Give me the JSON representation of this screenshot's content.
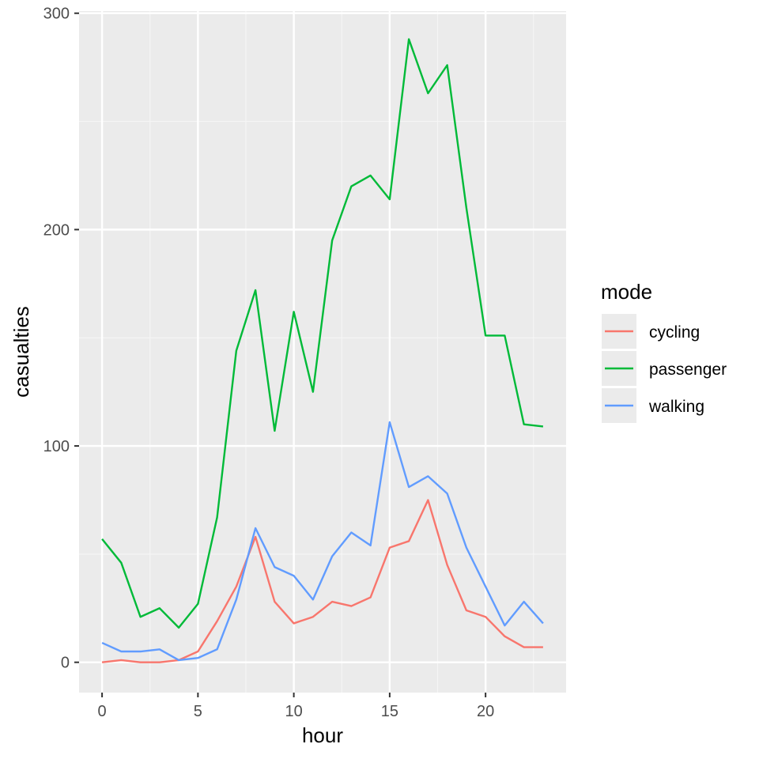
{
  "chart_data": {
    "type": "line",
    "xlabel": "hour",
    "ylabel": "casualties",
    "xlim": [
      -1.2,
      24.2
    ],
    "ylim": [
      -14,
      301
    ],
    "x_ticks": [
      0,
      5,
      10,
      15,
      20
    ],
    "y_ticks": [
      0,
      100,
      200,
      300
    ],
    "x_tick_labels": [
      "0",
      "5",
      "10",
      "15",
      "20"
    ],
    "y_tick_labels": [
      "0",
      "100",
      "200",
      "300"
    ],
    "grid": true,
    "legend": {
      "title": "mode",
      "position": "right"
    },
    "x": [
      0,
      1,
      2,
      3,
      4,
      5,
      6,
      7,
      8,
      9,
      10,
      11,
      12,
      13,
      14,
      15,
      16,
      17,
      18,
      19,
      20,
      21,
      22,
      23
    ],
    "series": [
      {
        "name": "cycling",
        "color": "#F8766D",
        "values": [
          0,
          1,
          0,
          0,
          1,
          5,
          19,
          35,
          58,
          28,
          18,
          21,
          28,
          26,
          30,
          53,
          56,
          75,
          45,
          24,
          21,
          12,
          7,
          7
        ]
      },
      {
        "name": "passenger",
        "color": "#00BA38",
        "values": [
          57,
          46,
          21,
          25,
          16,
          27,
          67,
          144,
          172,
          107,
          162,
          125,
          195,
          220,
          225,
          214,
          288,
          263,
          276,
          210,
          151,
          151,
          110,
          109
        ]
      },
      {
        "name": "walking",
        "color": "#619CFF",
        "values": [
          9,
          5,
          5,
          6,
          1,
          2,
          6,
          29,
          62,
          44,
          40,
          29,
          49,
          60,
          54,
          111,
          81,
          86,
          78,
          53,
          35,
          17,
          28,
          18
        ]
      }
    ]
  }
}
